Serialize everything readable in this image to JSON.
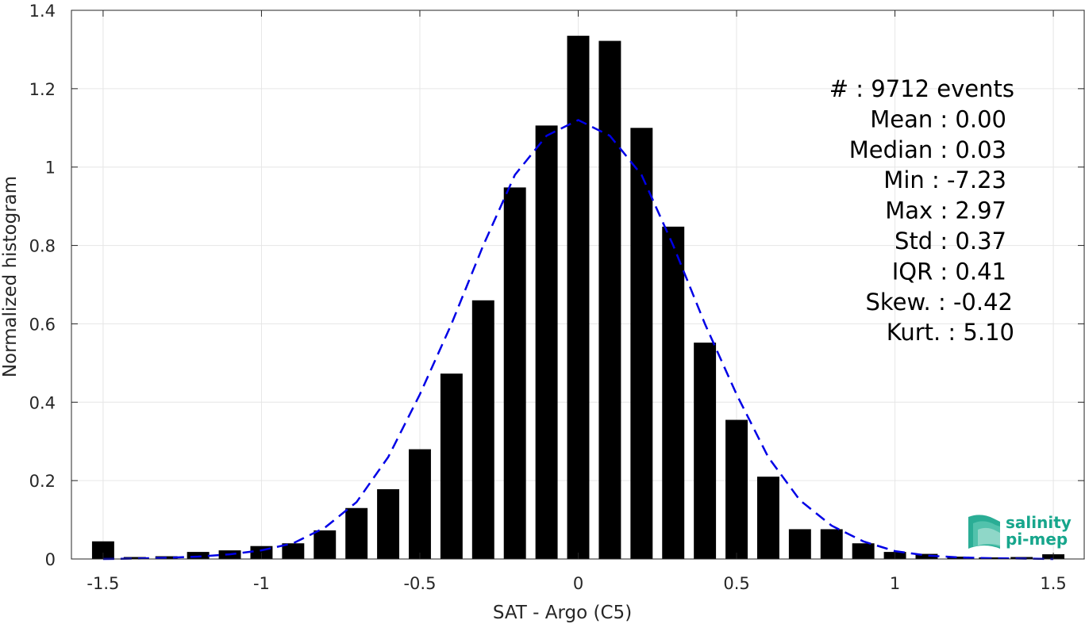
{
  "chart_data": {
    "type": "bar",
    "xlabel": "SAT - Argo (C5)",
    "ylabel": "Normalized histogram",
    "xlim": [
      -1.6,
      1.6
    ],
    "ylim": [
      0,
      1.4
    ],
    "xticks": [
      -1.5,
      -1,
      -0.5,
      0,
      0.5,
      1,
      1.5
    ],
    "xtick_labels": [
      "-1.5",
      "-1",
      "-0.5",
      "0",
      "0.5",
      "1",
      "1.5"
    ],
    "yticks": [
      0,
      0.2,
      0.4,
      0.6,
      0.8,
      1,
      1.2,
      1.4
    ],
    "ytick_labels": [
      "0",
      "0.2",
      "0.4",
      "0.6",
      "0.8",
      "1",
      "1.2",
      "1.4"
    ],
    "grid": true,
    "bar_width": 0.07,
    "bars": {
      "x": [
        -1.5,
        -1.4,
        -1.3,
        -1.2,
        -1.1,
        -1.0,
        -0.9,
        -0.8,
        -0.7,
        -0.6,
        -0.5,
        -0.4,
        -0.3,
        -0.2,
        -0.1,
        0.0,
        0.1,
        0.2,
        0.3,
        0.4,
        0.5,
        0.6,
        0.7,
        0.8,
        0.9,
        1.0,
        1.1,
        1.2,
        1.3,
        1.4,
        1.5
      ],
      "values": [
        0.045,
        0.005,
        0.007,
        0.018,
        0.022,
        0.033,
        0.04,
        0.073,
        0.13,
        0.178,
        0.28,
        0.473,
        0.66,
        0.948,
        1.106,
        1.335,
        1.322,
        1.1,
        0.848,
        0.552,
        0.355,
        0.21,
        0.076,
        0.076,
        0.04,
        0.018,
        0.013,
        0.006,
        0.004,
        0.005,
        0.012
      ],
      "color": "#000000"
    },
    "fit_curve": {
      "style": "dashed",
      "color": "#0000e6",
      "x": [
        -1.5,
        -1.4,
        -1.3,
        -1.2,
        -1.1,
        -1.0,
        -0.9,
        -0.8,
        -0.7,
        -0.6,
        -0.5,
        -0.4,
        -0.3,
        -0.2,
        -0.1,
        0.0,
        0.1,
        0.2,
        0.3,
        0.4,
        0.5,
        0.6,
        0.7,
        0.8,
        0.9,
        1.0,
        1.1,
        1.2,
        1.3,
        1.4,
        1.5
      ],
      "values": [
        0.0,
        0.001,
        0.003,
        0.006,
        0.012,
        0.022,
        0.04,
        0.08,
        0.145,
        0.26,
        0.42,
        0.6,
        0.8,
        0.98,
        1.08,
        1.12,
        1.08,
        0.98,
        0.8,
        0.6,
        0.42,
        0.26,
        0.15,
        0.085,
        0.045,
        0.02,
        0.009,
        0.004,
        0.002,
        0.001,
        0.0
      ]
    },
    "stats": [
      {
        "label": "#  : 9712 events",
        "anchor": "end"
      },
      {
        "label": "Mean : 0.00",
        "anchor": "end"
      },
      {
        "label": "Median : 0.03",
        "anchor": "end"
      },
      {
        "label": "Min : -7.23",
        "anchor": "end"
      },
      {
        "label": "Max : 2.97",
        "anchor": "end"
      },
      {
        "label": "Std : 0.37",
        "anchor": "end"
      },
      {
        "label": "IQR : 0.41",
        "anchor": "end"
      },
      {
        "label": "Skew. : -0.42",
        "anchor": "end"
      },
      {
        "label": "Kurt. : 5.10",
        "anchor": "end"
      }
    ]
  },
  "logo": {
    "line1": "salinity",
    "line2": "pi-mep",
    "color": "#17a68c"
  }
}
